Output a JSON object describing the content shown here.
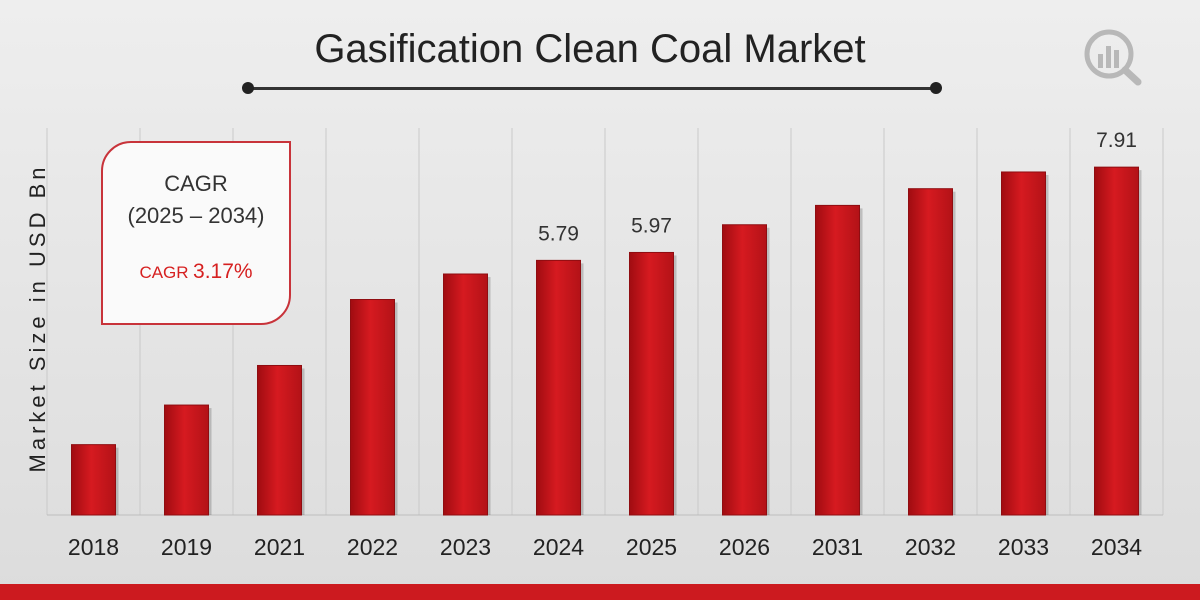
{
  "header": {
    "title": "Gasification Clean Coal Market"
  },
  "logo": {
    "icon": "bar-chart-magnifier-icon"
  },
  "cagr_box": {
    "title": "CAGR",
    "period": "(2025 – 2034)",
    "label_prefix": "CAGR",
    "label_value": "3.17%"
  },
  "colors": {
    "bar": "#cc1a1f",
    "bar_dark": "#8f0d11",
    "accent": "#cc1a1f",
    "cagr_text": "#d62020"
  },
  "chart_data": {
    "type": "bar",
    "title": "Gasification Clean Coal Market",
    "xlabel": "",
    "ylabel": "Market Size in USD Bn",
    "categories": [
      "2018",
      "2019",
      "2021",
      "2022",
      "2023",
      "2024",
      "2025",
      "2026",
      "2031",
      "2032",
      "2033",
      "2034"
    ],
    "values": [
      1.6,
      2.5,
      3.4,
      4.9,
      5.48,
      5.79,
      5.97,
      6.6,
      7.04,
      7.42,
      7.8,
      7.91
    ],
    "data_labels": [
      "",
      "",
      "",
      "",
      "",
      "5.79",
      "5.97",
      "",
      "",
      "",
      "",
      "7.91"
    ],
    "ylim": [
      0,
      8.8
    ],
    "grid": "vertical lines",
    "legend": "none"
  }
}
